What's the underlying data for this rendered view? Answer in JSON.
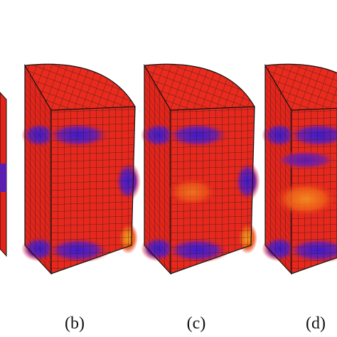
{
  "panels": [
    {
      "label": "(b)"
    },
    {
      "label": "(c)"
    },
    {
      "label": "(d)"
    }
  ]
}
